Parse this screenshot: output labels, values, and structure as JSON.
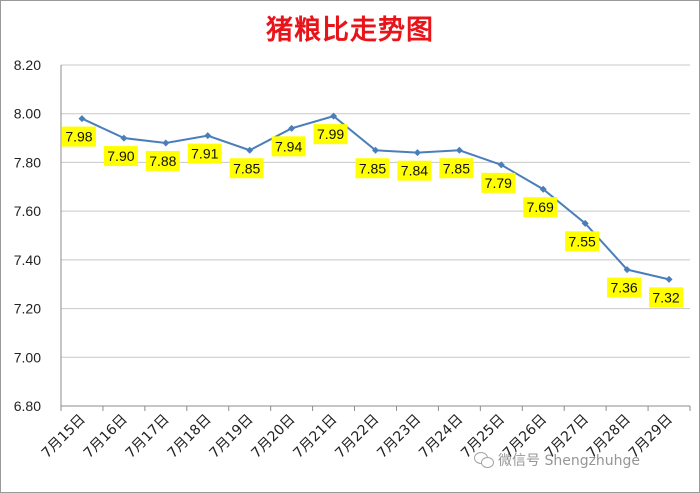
{
  "chart_data": {
    "type": "line",
    "title": "猪粮比走势图",
    "categories": [
      "7月15日",
      "7月16日",
      "7月17日",
      "7月18日",
      "7月19日",
      "7月20日",
      "7月21日",
      "7月22日",
      "7月23日",
      "7月24日",
      "7月25日",
      "7月26日",
      "7月27日",
      "7月28日",
      "7月29日"
    ],
    "series": [
      {
        "values": [
          7.98,
          7.9,
          7.88,
          7.91,
          7.85,
          7.94,
          7.99,
          7.85,
          7.84,
          7.85,
          7.79,
          7.69,
          7.55,
          7.36,
          7.32
        ]
      }
    ],
    "data_labels": [
      "7.98",
      "7.90",
      "7.88",
      "7.91",
      "7.85",
      "7.94",
      "7.99",
      "7.85",
      "7.84",
      "7.85",
      "7.79",
      "7.69",
      "7.55",
      "7.36",
      "7.32"
    ],
    "yticks": [
      "6.80",
      "7.00",
      "7.20",
      "7.40",
      "7.60",
      "7.80",
      "8.00",
      "8.20"
    ],
    "ylim": [
      6.8,
      8.2
    ],
    "grid": true,
    "legend": "none",
    "colors": {
      "line": "#4a7ebb",
      "label_bg": "#ffff00",
      "grid": "#c8c8c8",
      "title": "#e8141a"
    }
  },
  "watermark": {
    "text": "微信号 Shengzhuhge",
    "icon": "wechat-icon"
  }
}
